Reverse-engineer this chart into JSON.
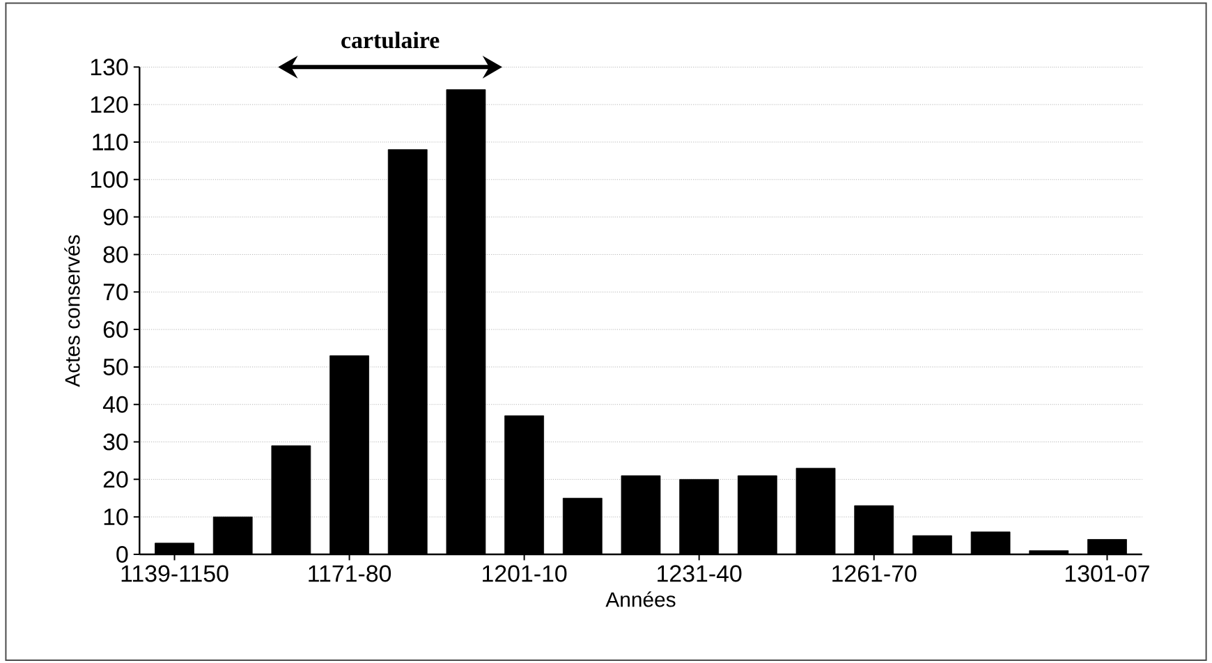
{
  "chart_data": {
    "type": "bar",
    "xlabel": "Années",
    "ylabel": "Actes conservés",
    "categories": [
      "1139-1150",
      null,
      null,
      "1171-80",
      null,
      null,
      "1201-10",
      null,
      null,
      "1231-40",
      null,
      null,
      "1261-70",
      null,
      null,
      null,
      "1301-07"
    ],
    "values": [
      3,
      10,
      29,
      53,
      108,
      124,
      37,
      15,
      21,
      20,
      21,
      23,
      13,
      5,
      6,
      1,
      4
    ],
    "color": "#000000",
    "ylim": [
      0,
      130
    ],
    "yticks": [
      0,
      10,
      20,
      30,
      40,
      50,
      60,
      70,
      80,
      90,
      100,
      110,
      120,
      130
    ],
    "grid": "y",
    "annotations": [
      "cartulaire"
    ]
  }
}
